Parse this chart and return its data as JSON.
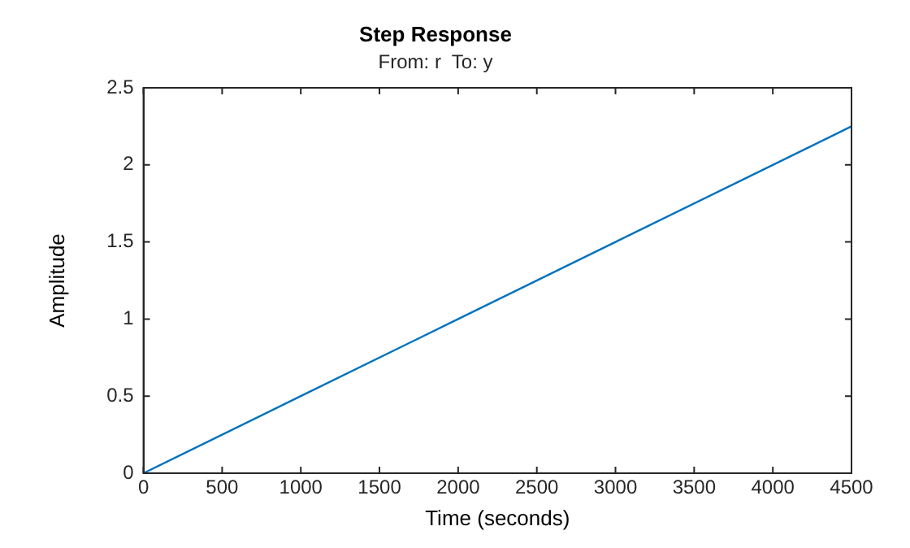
{
  "chart_data": {
    "type": "line",
    "title": "Step Response",
    "subtitle": "From: r  To: y",
    "xlabel": "Time (seconds)",
    "ylabel": "Amplitude",
    "x": [
      0,
      1000,
      2000,
      3000,
      4000,
      4500
    ],
    "series": [
      {
        "color": "#0072bd",
        "values": [
          0,
          0.5,
          1,
          1.5,
          2,
          2.25
        ]
      }
    ],
    "xlim": [
      0,
      4500
    ],
    "xticks": [
      0,
      500,
      1000,
      1500,
      2000,
      2500,
      3000,
      3500,
      4000,
      4500
    ],
    "ylim": [
      0,
      2.5
    ],
    "yticks": [
      0,
      0.5,
      1,
      1.5,
      2,
      2.5
    ],
    "grid": false,
    "legend": false,
    "marker": "none",
    "line_style": "solid"
  }
}
